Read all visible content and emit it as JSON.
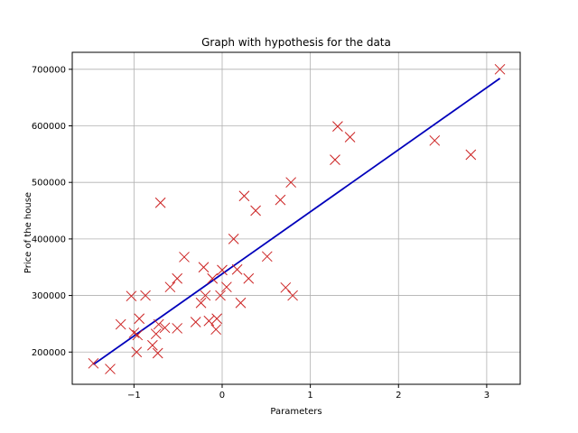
{
  "chart_data": {
    "type": "scatter",
    "title": "Graph with hypothesis for the data",
    "xlabel": "Parameters",
    "ylabel": "Price of the house",
    "xlim": [
      -1.7,
      3.38
    ],
    "ylim": [
      143000,
      730000
    ],
    "xticks": [
      -1,
      0,
      1,
      2,
      3
    ],
    "yticks": [
      200000,
      300000,
      400000,
      500000,
      600000,
      700000
    ],
    "xtick_labels": [
      "−1",
      "0",
      "1",
      "2",
      "3"
    ],
    "ytick_labels": [
      "200000",
      "300000",
      "400000",
      "500000",
      "600000",
      "700000"
    ],
    "grid": true,
    "colors": {
      "points": "#cc2222",
      "line": "#0000bb",
      "grid": "#b0b0b0"
    },
    "series": [
      {
        "kind": "points",
        "marker": "x",
        "points": [
          {
            "x": -1.46,
            "y": 180000
          },
          {
            "x": -1.27,
            "y": 170000
          },
          {
            "x": -1.15,
            "y": 249000
          },
          {
            "x": -1.03,
            "y": 299000
          },
          {
            "x": -1.0,
            "y": 234000
          },
          {
            "x": -0.97,
            "y": 200000
          },
          {
            "x": -0.96,
            "y": 230000
          },
          {
            "x": -0.94,
            "y": 259000
          },
          {
            "x": -0.87,
            "y": 300000
          },
          {
            "x": -0.79,
            "y": 212000
          },
          {
            "x": -0.75,
            "y": 232000
          },
          {
            "x": -0.73,
            "y": 198000
          },
          {
            "x": -0.72,
            "y": 249000
          },
          {
            "x": -0.7,
            "y": 464000
          },
          {
            "x": -0.65,
            "y": 243000
          },
          {
            "x": -0.59,
            "y": 315000
          },
          {
            "x": -0.51,
            "y": 330000
          },
          {
            "x": -0.51,
            "y": 242000
          },
          {
            "x": -0.43,
            "y": 368000
          },
          {
            "x": -0.3,
            "y": 253000
          },
          {
            "x": -0.24,
            "y": 287000
          },
          {
            "x": -0.21,
            "y": 350000
          },
          {
            "x": -0.19,
            "y": 300000
          },
          {
            "x": -0.15,
            "y": 255000
          },
          {
            "x": -0.11,
            "y": 330000
          },
          {
            "x": -0.07,
            "y": 240000
          },
          {
            "x": -0.06,
            "y": 259000
          },
          {
            "x": -0.02,
            "y": 300000
          },
          {
            "x": 0.0,
            "y": 345000
          },
          {
            "x": 0.05,
            "y": 315000
          },
          {
            "x": 0.13,
            "y": 400000
          },
          {
            "x": 0.17,
            "y": 346000
          },
          {
            "x": 0.21,
            "y": 287000
          },
          {
            "x": 0.25,
            "y": 476000
          },
          {
            "x": 0.3,
            "y": 330000
          },
          {
            "x": 0.38,
            "y": 450000
          },
          {
            "x": 0.51,
            "y": 369000
          },
          {
            "x": 0.66,
            "y": 469000
          },
          {
            "x": 0.72,
            "y": 314000
          },
          {
            "x": 0.78,
            "y": 500000
          },
          {
            "x": 0.8,
            "y": 300000
          },
          {
            "x": 1.28,
            "y": 540000
          },
          {
            "x": 1.31,
            "y": 599000
          },
          {
            "x": 1.45,
            "y": 580000
          },
          {
            "x": 2.41,
            "y": 574000
          },
          {
            "x": 2.82,
            "y": 549000
          },
          {
            "x": 3.15,
            "y": 700000
          }
        ]
      },
      {
        "kind": "line",
        "points": [
          {
            "x": -1.46,
            "y": 178000
          },
          {
            "x": 3.15,
            "y": 684000
          }
        ]
      }
    ]
  }
}
